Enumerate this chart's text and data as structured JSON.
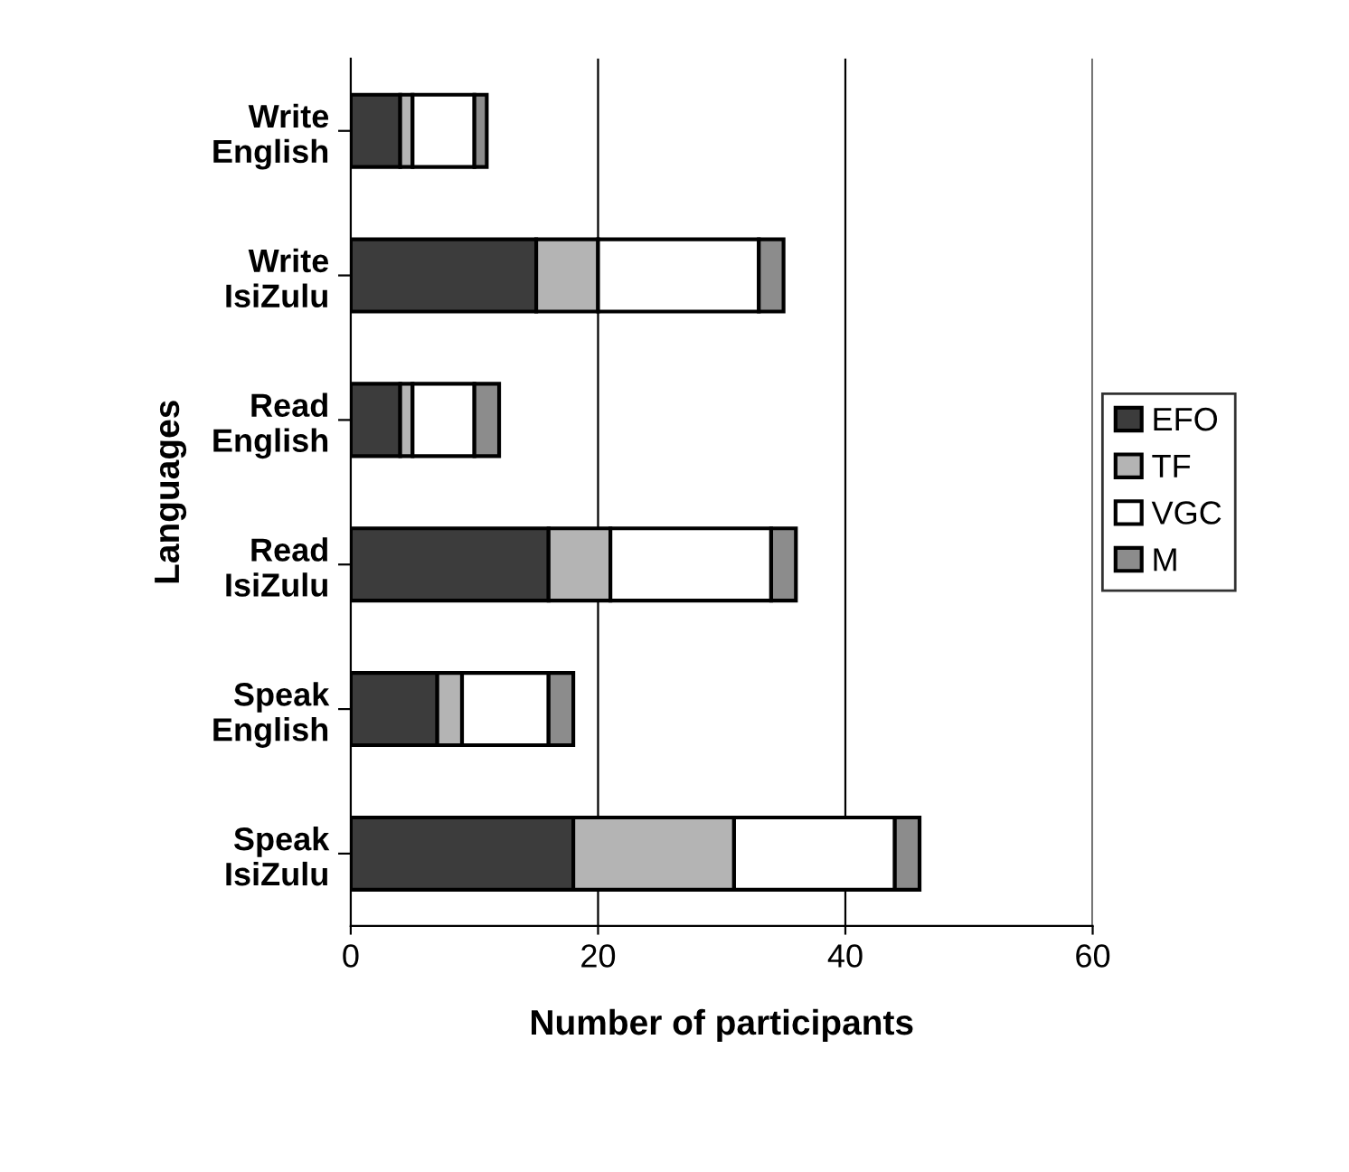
{
  "chart_data": {
    "type": "bar",
    "orientation": "horizontal",
    "stacked": true,
    "xlabel": "Number of participants",
    "ylabel": "Languages",
    "categories": [
      "Write\nEnglish",
      "Write\nIsiZulu",
      "Read\nEnglish",
      "Read\nIsiZulu",
      "Speak\nEnglish",
      "Speak\nIsiZulu"
    ],
    "series": [
      {
        "name": "EFO",
        "color": "#3c3c3c",
        "values": [
          4,
          15,
          4,
          16,
          7,
          18
        ]
      },
      {
        "name": "TF",
        "color": "#b4b4b4",
        "values": [
          1,
          5,
          1,
          5,
          2,
          13
        ]
      },
      {
        "name": "VGC",
        "color": "#ffffff",
        "values": [
          5,
          13,
          5,
          13,
          7,
          13
        ]
      },
      {
        "name": "M",
        "color": "#8c8c8c",
        "values": [
          1,
          2,
          2,
          2,
          2,
          2
        ]
      }
    ],
    "xlim": [
      0,
      60
    ],
    "xticks": [
      0,
      20,
      40,
      60
    ],
    "grid": "x",
    "legend": "right"
  }
}
